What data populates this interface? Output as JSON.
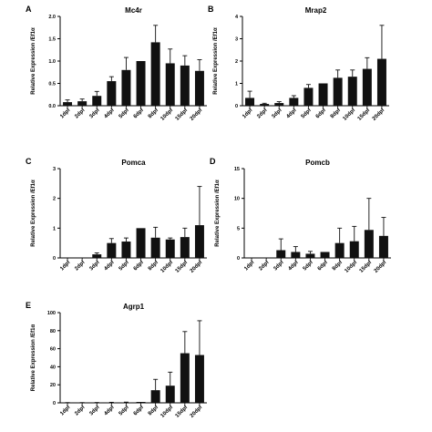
{
  "chart_data": [
    {
      "panel": "A",
      "type": "bar",
      "title": "Mc4r",
      "ylabel": "Relative Expression /Ef1α",
      "categories": [
        "1dpf",
        "2dpf",
        "3dpf",
        "4dpf",
        "5dpf",
        "6dpf",
        "8dpf",
        "10dpf",
        "15dpf",
        "20dpf"
      ],
      "values": [
        0.08,
        0.1,
        0.22,
        0.55,
        0.8,
        1.0,
        1.42,
        0.95,
        0.9,
        0.78
      ],
      "errors": [
        0.05,
        0.05,
        0.1,
        0.1,
        0.28,
        0.0,
        0.38,
        0.32,
        0.22,
        0.25
      ],
      "ylim": [
        0,
        2.0
      ],
      "yticks": [
        "0.0",
        "0.5",
        "1.0",
        "1.5",
        "2.0"
      ]
    },
    {
      "panel": "B",
      "type": "bar",
      "title": "Mrap2",
      "ylabel": "Relative Expression /Ef1α",
      "categories": [
        "1dpf",
        "2dpf",
        "3dpf",
        "4dpf",
        "5dpf",
        "6dpf",
        "8dpf",
        "10dpf",
        "15dpf",
        "20dpf"
      ],
      "values": [
        0.35,
        0.08,
        0.12,
        0.35,
        0.8,
        1.0,
        1.25,
        1.3,
        1.65,
        2.1
      ],
      "errors": [
        0.3,
        0.03,
        0.06,
        0.1,
        0.15,
        0.0,
        0.35,
        0.3,
        0.5,
        1.5
      ],
      "ylim": [
        0,
        4
      ],
      "yticks": [
        "0",
        "1",
        "2",
        "3",
        "4"
      ]
    },
    {
      "panel": "C",
      "type": "bar",
      "title": "Pomca",
      "ylabel": "Relative Expression /Ef1α",
      "categories": [
        "1dpf",
        "2dpf",
        "3dpf",
        "4dpf",
        "5dpf",
        "6dpf",
        "8dpf",
        "10dpf",
        "15dpf",
        "20dpf"
      ],
      "values": [
        0.0,
        0.0,
        0.12,
        0.5,
        0.55,
        1.0,
        0.68,
        0.62,
        0.7,
        1.1
      ],
      "errors": [
        0.0,
        0.0,
        0.05,
        0.15,
        0.12,
        0.0,
        0.35,
        0.05,
        0.3,
        1.3
      ],
      "ylim": [
        0,
        3
      ],
      "yticks": [
        "0",
        "1",
        "2",
        "3"
      ]
    },
    {
      "panel": "D",
      "type": "bar",
      "title": "Pomcb",
      "ylabel": "Relative Expression /Ef1α",
      "categories": [
        "1dpf",
        "2dpf",
        "3dpf",
        "4dpf",
        "5dpf",
        "6dpf",
        "8dpf",
        "10dpf",
        "15dpf",
        "20dpf"
      ],
      "values": [
        0.0,
        0.0,
        1.3,
        1.0,
        0.7,
        1.0,
        2.5,
        2.8,
        4.7,
        3.7
      ],
      "errors": [
        0.0,
        0.0,
        1.9,
        0.9,
        0.4,
        0.0,
        2.5,
        2.5,
        5.3,
        3.1
      ],
      "ylim": [
        0,
        15
      ],
      "yticks": [
        "0",
        "5",
        "10",
        "15"
      ]
    },
    {
      "panel": "E",
      "type": "bar",
      "title": "Agrp1",
      "ylabel": "Relative Expression /Ef1α",
      "categories": [
        "1dpf",
        "2dpf",
        "3dpf",
        "4dpf",
        "5dpf",
        "6dpf",
        "8dpf",
        "10dpf",
        "15dpf",
        "20dpf"
      ],
      "values": [
        0.2,
        0.2,
        0.3,
        0.4,
        0.5,
        1.0,
        14.0,
        19.0,
        55.0,
        53.0
      ],
      "errors": [
        0.1,
        0.1,
        0.1,
        0.2,
        0.3,
        0.0,
        12.0,
        15.0,
        24.0,
        38.0
      ],
      "ylim": [
        0,
        100
      ],
      "yticks": [
        "0",
        "20",
        "40",
        "60",
        "80",
        "100"
      ]
    }
  ]
}
